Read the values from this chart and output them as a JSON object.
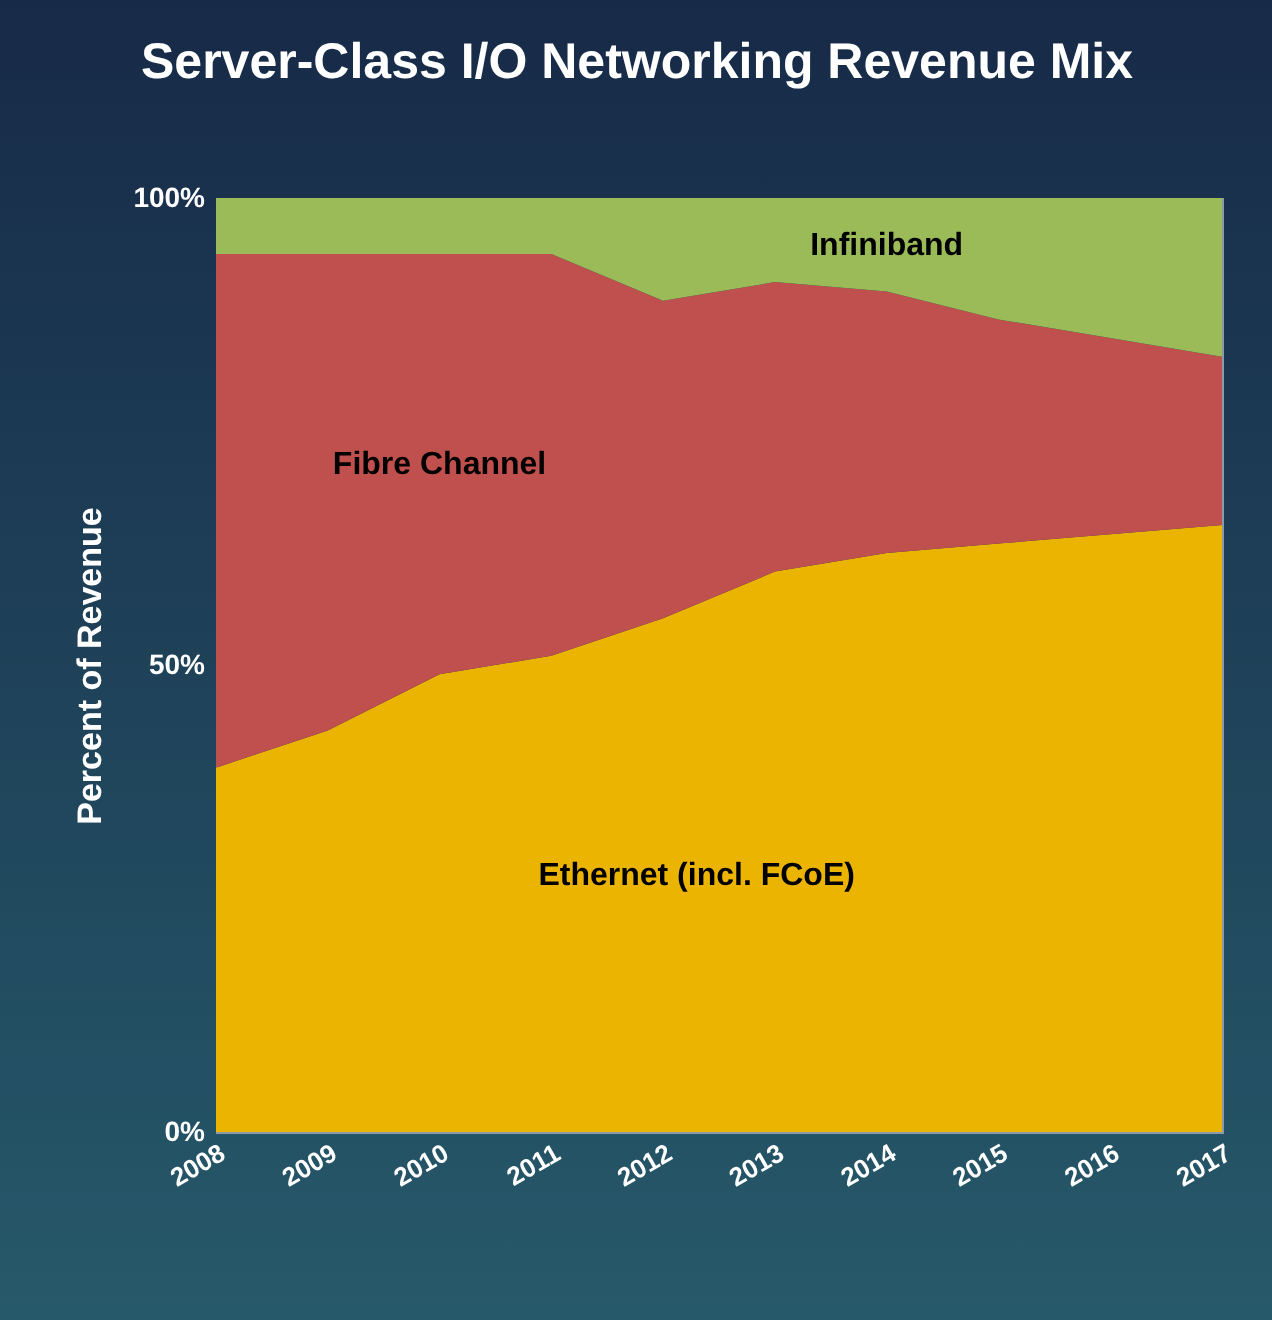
{
  "chart_data": {
    "type": "area",
    "stacked": true,
    "title": "Server-Class I/O Networking Revenue Mix",
    "ylabel": "Percent of Revenue",
    "categories": [
      "2008",
      "2009",
      "2010",
      "2011",
      "2012",
      "2013",
      "2014",
      "2015",
      "2016",
      "2017"
    ],
    "series": [
      {
        "name": "Ethernet (incl. FCoE)",
        "color": "#ebb400",
        "values": [
          39,
          43,
          49,
          51,
          55,
          60,
          62,
          63,
          64,
          65
        ]
      },
      {
        "name": "Fibre Channel",
        "color": "#c0504d",
        "values": [
          55,
          51,
          45,
          43,
          34,
          31,
          28,
          24,
          21,
          18
        ]
      },
      {
        "name": "Infiniband",
        "color": "#9bbb59",
        "values": [
          6,
          6,
          6,
          6,
          11,
          9,
          10,
          13,
          15,
          17
        ]
      }
    ],
    "ylim": [
      0,
      100
    ],
    "yticks": [
      {
        "value": 0,
        "label": "0%"
      },
      {
        "value": 50,
        "label": "50%"
      },
      {
        "value": 100,
        "label": "100%"
      }
    ]
  }
}
